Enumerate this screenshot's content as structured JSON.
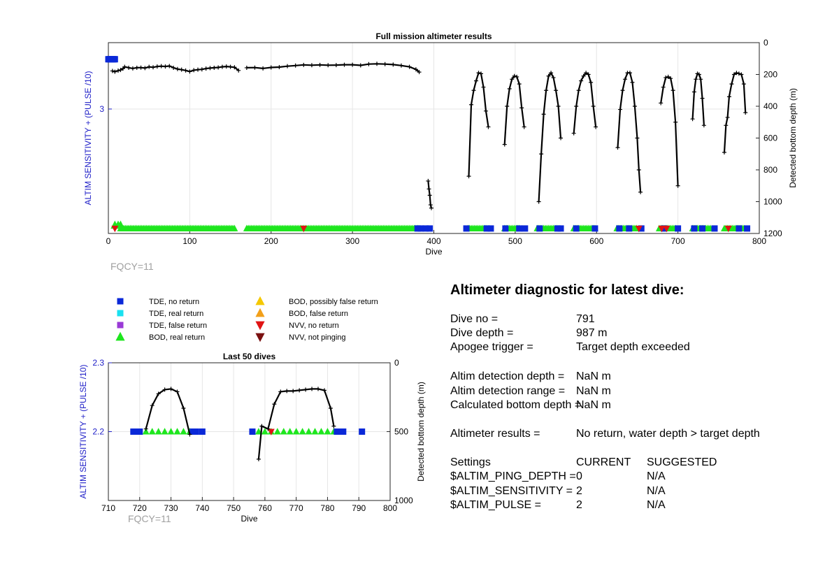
{
  "chart_data": [
    {
      "type": "scatter",
      "title": "Full mission altimeter results",
      "xlabel": "Dive",
      "ylabel_left": "ALTIM SENSITIVITY + (PULSE /10)",
      "ylabel_right": "Detected bottom depth (m)",
      "xlim": [
        0,
        800
      ],
      "xticks": [
        "0",
        "100",
        "200",
        "300",
        "400",
        "500",
        "600",
        "700",
        "800"
      ],
      "ylim_left": [
        1.5,
        3.8
      ],
      "yticks_left": [
        "3"
      ],
      "ylim_right": [
        1200,
        0
      ],
      "yticks_right": [
        "0",
        "200",
        "400",
        "600",
        "800",
        "1000",
        "1200"
      ],
      "grid": true,
      "annotation": "FQCY=11",
      "depth_series": [
        {
          "x": [
            5,
            8,
            12,
            15,
            18,
            20,
            25,
            30,
            35,
            40,
            45,
            50,
            55,
            60,
            65,
            70,
            75,
            80,
            85,
            90,
            95,
            100,
            105,
            110,
            115,
            120,
            125,
            130,
            135,
            140,
            145,
            150,
            155,
            160
          ],
          "y": [
            178,
            183,
            176,
            172,
            163,
            152,
            158,
            162,
            158,
            157,
            160,
            152,
            155,
            150,
            148,
            150,
            147,
            158,
            166,
            170,
            175,
            182,
            173,
            170,
            168,
            163,
            160,
            158,
            156,
            152,
            150,
            152,
            155,
            175
          ]
        },
        {
          "x": [
            170,
            180,
            190,
            200,
            210,
            220,
            230,
            240,
            250,
            260,
            270,
            280,
            290,
            300,
            310,
            320,
            330,
            340,
            350,
            360,
            370,
            378,
            382
          ],
          "y": [
            158,
            157,
            162,
            156,
            154,
            148,
            144,
            140,
            142,
            140,
            142,
            141,
            139,
            139,
            143,
            135,
            133,
            135,
            138,
            144,
            152,
            168,
            185
          ]
        },
        {
          "x": [
            393,
            394,
            395,
            396,
            397
          ],
          "y": [
            870,
            920,
            960,
            1020,
            1040
          ]
        },
        {
          "x": [
            443,
            446,
            449,
            452,
            455,
            458,
            461,
            464,
            467
          ],
          "y": [
            840,
            390,
            300,
            240,
            190,
            195,
            280,
            430,
            530
          ]
        },
        {
          "x": [
            487,
            490,
            493,
            496,
            499,
            502,
            505,
            508,
            511
          ],
          "y": [
            640,
            400,
            290,
            230,
            210,
            215,
            260,
            410,
            530
          ]
        },
        {
          "x": [
            529,
            532,
            535,
            538,
            541,
            544,
            547,
            550,
            553,
            556
          ],
          "y": [
            1000,
            700,
            450,
            300,
            210,
            190,
            220,
            300,
            400,
            600
          ]
        },
        {
          "x": [
            572,
            575,
            578,
            581,
            584,
            587,
            590,
            593,
            596,
            599
          ],
          "y": [
            570,
            400,
            300,
            240,
            210,
            190,
            200,
            250,
            400,
            530
          ]
        },
        {
          "x": [
            626,
            629,
            632,
            635,
            638,
            641,
            644,
            647,
            650,
            652,
            654
          ],
          "y": [
            660,
            420,
            300,
            230,
            190,
            190,
            250,
            400,
            600,
            800,
            940
          ]
        },
        {
          "x": [
            679,
            682,
            685,
            688,
            691,
            694,
            697,
            700
          ],
          "y": [
            380,
            280,
            220,
            215,
            225,
            300,
            500,
            900
          ]
        },
        {
          "x": [
            718,
            720,
            722,
            724,
            726,
            728,
            730,
            732
          ],
          "y": [
            480,
            310,
            230,
            195,
            200,
            230,
            350,
            520
          ]
        },
        {
          "x": [
            757,
            759,
            761,
            763,
            766,
            769,
            772,
            775,
            778,
            781,
            783
          ],
          "y": [
            690,
            520,
            470,
            340,
            260,
            200,
            190,
            195,
            200,
            260,
            440
          ]
        }
      ],
      "tde_no_return": [
        [
          0,
          3.6
        ],
        [
          1,
          3.6
        ],
        [
          2,
          3.6
        ],
        [
          3,
          3.6
        ],
        [
          4,
          3.6
        ],
        [
          5,
          3.6
        ],
        [
          6,
          3.6
        ],
        [
          7,
          3.6
        ],
        [
          8,
          3.6
        ],
        [
          380,
          1.56
        ],
        [
          384,
          1.56
        ],
        [
          390,
          1.56
        ],
        [
          395,
          1.56
        ],
        [
          440,
          1.56
        ],
        [
          465,
          1.56
        ],
        [
          470,
          1.56
        ],
        [
          488,
          1.56
        ],
        [
          505,
          1.56
        ],
        [
          512,
          1.56
        ],
        [
          530,
          1.56
        ],
        [
          552,
          1.56
        ],
        [
          556,
          1.56
        ],
        [
          575,
          1.56
        ],
        [
          598,
          1.56
        ],
        [
          628,
          1.56
        ],
        [
          640,
          1.56
        ],
        [
          655,
          1.56
        ],
        [
          683,
          1.56
        ],
        [
          700,
          1.56
        ],
        [
          720,
          1.56
        ],
        [
          730,
          1.56
        ],
        [
          745,
          1.56
        ],
        [
          775,
          1.56
        ],
        [
          785,
          1.56
        ]
      ],
      "bod_real_return_runs": [
        [
          15,
          155
        ],
        [
          170,
          380
        ],
        [
          442,
          465
        ],
        [
          487,
          505
        ],
        [
          527,
          552
        ],
        [
          572,
          598
        ],
        [
          625,
          650
        ],
        [
          677,
          697
        ],
        [
          718,
          740
        ],
        [
          757,
          782
        ]
      ],
      "bod_real_return_early": [
        [
          8,
          1.6
        ],
        [
          12,
          1.6
        ],
        [
          15,
          1.6
        ]
      ],
      "nvv_no_return": [
        [
          8,
          1.56
        ],
        [
          240,
          1.56
        ],
        [
          652,
          1.56
        ],
        [
          680,
          1.56
        ],
        [
          686,
          1.56
        ],
        [
          762,
          1.56
        ]
      ]
    },
    {
      "type": "scatter",
      "title": "Last 50 dives",
      "xlabel": "Dive",
      "ylabel_left": "ALTIM SENSITIVITY + (PULSE /10)",
      "ylabel_right": "Detected bottom depth (m)",
      "xlim": [
        710,
        800
      ],
      "xticks": [
        "710",
        "720",
        "730",
        "740",
        "750",
        "760",
        "770",
        "780",
        "790",
        "800"
      ],
      "ylim_left": [
        2.1,
        2.3
      ],
      "yticks_left": [
        "2.2",
        "2.3"
      ],
      "ylim_right": [
        1000,
        0
      ],
      "yticks_right": [
        "0",
        "500",
        "1000"
      ],
      "grid": true,
      "annotation": "FQCY=11",
      "depth_series": [
        {
          "x": [
            722,
            724,
            726,
            728,
            730,
            732,
            734,
            736
          ],
          "y": [
            480,
            310,
            225,
            195,
            190,
            210,
            330,
            520
          ]
        },
        {
          "x": [
            758,
            759,
            761,
            763,
            765,
            767,
            769,
            771,
            773,
            775,
            777,
            779,
            781,
            782
          ],
          "y": [
            700,
            460,
            480,
            300,
            210,
            205,
            205,
            200,
            195,
            190,
            190,
            200,
            330,
            460
          ]
        }
      ],
      "tde_no_return": [
        [
          718,
          2.2
        ],
        [
          719,
          2.2
        ],
        [
          720,
          2.2
        ],
        [
          737,
          2.2
        ],
        [
          738,
          2.2
        ],
        [
          740,
          2.2
        ],
        [
          756,
          2.2
        ],
        [
          783,
          2.2
        ],
        [
          784,
          2.2
        ],
        [
          785,
          2.2
        ],
        [
          791,
          2.2
        ]
      ],
      "bod_real_return": [
        [
          722,
          2.2
        ],
        [
          724,
          2.2
        ],
        [
          726,
          2.2
        ],
        [
          728,
          2.2
        ],
        [
          730,
          2.2
        ],
        [
          732,
          2.2
        ],
        [
          734,
          2.2
        ],
        [
          736,
          2.2
        ],
        [
          758,
          2.2
        ],
        [
          760,
          2.2
        ],
        [
          762,
          2.2
        ],
        [
          764,
          2.2
        ],
        [
          766,
          2.2
        ],
        [
          768,
          2.2
        ],
        [
          770,
          2.2
        ],
        [
          772,
          2.2
        ],
        [
          774,
          2.2
        ],
        [
          776,
          2.2
        ],
        [
          778,
          2.2
        ],
        [
          780,
          2.2
        ],
        [
          782,
          2.2
        ]
      ],
      "nvv_no_return": [
        [
          762,
          2.2
        ]
      ]
    }
  ],
  "legend": {
    "items": [
      {
        "label": "TDE, no return",
        "marker": "square",
        "color": "#0a28d8"
      },
      {
        "label": "TDE, real return",
        "marker": "square",
        "color": "#19e1f0"
      },
      {
        "label": "TDE, false return",
        "marker": "square",
        "color": "#9a3ad6"
      },
      {
        "label": "BOD, real return",
        "marker": "triangle-up",
        "color": "#1ee61e"
      },
      {
        "label": "BOD, possibly false return",
        "marker": "triangle-up",
        "color": "#f5c800"
      },
      {
        "label": "BOD, false return",
        "marker": "triangle-up",
        "color": "#f2a01a"
      },
      {
        "label": "NVV, no return",
        "marker": "triangle-down",
        "color": "#e01414"
      },
      {
        "label": "NVV, not pinging",
        "marker": "triangle-down",
        "color": "#7a1010"
      }
    ]
  },
  "colors": {
    "left_axis": "#2020c8",
    "depth_line": "#000000",
    "grid": "#e6e6e6",
    "annotation": "#a0a0a0"
  },
  "diagnostic": {
    "title": "Altimeter diagnostic for latest dive:",
    "dive_no_label": "Dive no =",
    "dive_no_value": "791",
    "dive_depth_label": "Dive depth =",
    "dive_depth_value": "987 m",
    "apogee_label": "Apogee trigger =",
    "apogee_value": "Target depth exceeded",
    "det_depth_label": "Altim detection depth =",
    "det_depth_value": "NaN m",
    "det_range_label": "Altim detection range =",
    "det_range_value": "NaN m",
    "calc_bottom_label": "Calculated bottom depth =",
    "calc_bottom_value": "NaN m",
    "results_label": "Altimeter results =",
    "results_value": "No return, water depth > target depth",
    "settings_header": "Settings",
    "current_header": "CURRENT",
    "suggested_header": "SUGGESTED",
    "settings": [
      {
        "name": "$ALTIM_PING_DEPTH =",
        "current": "0",
        "suggested": "N/A"
      },
      {
        "name": "$ALTIM_SENSITIVITY =",
        "current": "2",
        "suggested": "N/A"
      },
      {
        "name": "$ALTIM_PULSE =",
        "current": "2",
        "suggested": "N/A"
      }
    ]
  }
}
